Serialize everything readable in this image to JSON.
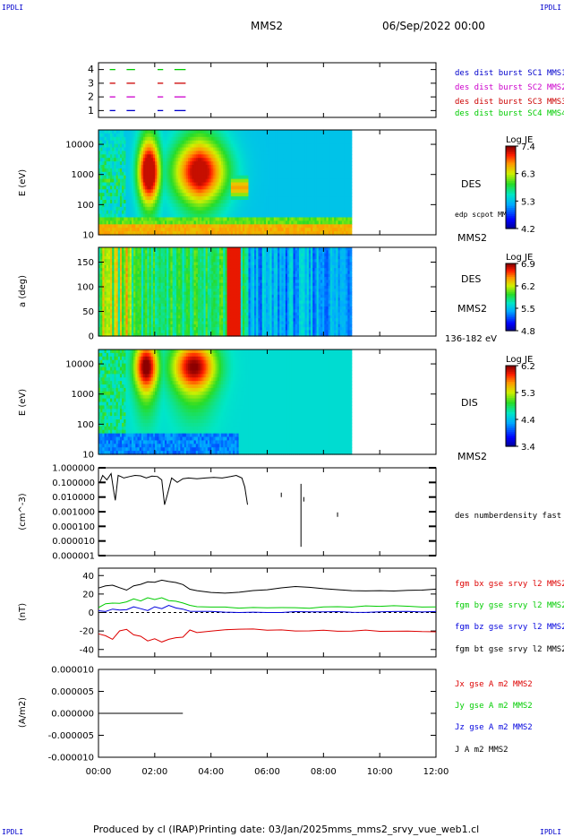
{
  "corner_label": "IPDLI",
  "header": {
    "spacecraft": "MMS2",
    "datetime": "06/Sep/2022 00:00"
  },
  "footer": {
    "produced": "Produced by cl (IRAP)",
    "printing": "Printing date: 03/Jan/2025",
    "filename": "mms_mms2_srvy_vue_web1.cl"
  },
  "time_axis": {
    "ticks": [
      "00:00",
      "02:00",
      "04:00",
      "06:00",
      "08:00",
      "10:00",
      "12:00"
    ],
    "range_hours": [
      0,
      12
    ]
  },
  "colors": {
    "mms1": "#0000cc",
    "mms2": "#cc00cc",
    "mms3": "#cc0000",
    "mms4": "#00cc00",
    "bx": "#dd0000",
    "by": "#00cc00",
    "bz": "#0000dd",
    "bt": "#000000"
  },
  "chart_data": [
    {
      "type": "scatter",
      "panel": "burst-availability",
      "y_ticks": [
        "1",
        "2",
        "3",
        "4"
      ],
      "ylim": [
        0.5,
        4.5
      ],
      "series": [
        {
          "name": "des dist burst SC1 MMS1",
          "level": 1,
          "color": "#0000cc",
          "segments_hours": [
            [
              0.4,
              0.6
            ],
            [
              1.0,
              1.3
            ],
            [
              2.1,
              2.3
            ],
            [
              2.7,
              3.1
            ]
          ]
        },
        {
          "name": "des dist burst SC2 MMS2",
          "level": 2,
          "color": "#cc00cc",
          "segments_hours": [
            [
              0.4,
              0.6
            ],
            [
              1.0,
              1.3
            ],
            [
              2.1,
              2.3
            ],
            [
              2.7,
              3.1
            ]
          ]
        },
        {
          "name": "des dist burst SC3 MMS3",
          "level": 3,
          "color": "#cc0000",
          "segments_hours": [
            [
              0.4,
              0.6
            ],
            [
              1.0,
              1.3
            ],
            [
              2.1,
              2.3
            ],
            [
              2.7,
              3.1
            ]
          ]
        },
        {
          "name": "des dist burst SC4 MMS4",
          "level": 4,
          "color": "#00cc00",
          "segments_hours": [
            [
              0.4,
              0.6
            ],
            [
              1.0,
              1.3
            ],
            [
              2.1,
              2.3
            ],
            [
              2.7,
              3.1
            ]
          ]
        }
      ]
    },
    {
      "type": "heatmap",
      "panel": "des-energy",
      "ylabel": "E (eV)",
      "y_scale": "log",
      "y_ticks": [
        "10",
        "100",
        "1000",
        "10000"
      ],
      "ylim": [
        10,
        30000
      ],
      "data_end_hours": 9.0,
      "instrument": "DES",
      "overlay_label": "edp scpot MMS2",
      "spacecraft": "MMS2",
      "colorbar": {
        "title": "Log JE",
        "ticks": [
          "7.4",
          "6.3",
          "5.3",
          "4.2"
        ],
        "range": [
          4.2,
          7.4
        ]
      }
    },
    {
      "type": "heatmap",
      "panel": "des-pitch-angle",
      "ylabel": "a (deg)",
      "y_ticks": [
        "0",
        "50",
        "100",
        "150"
      ],
      "ylim": [
        0,
        180
      ],
      "data_end_hours": 9.0,
      "instrument": "DES",
      "spacecraft": "MMS2",
      "energy_band": "136-182 eV",
      "colorbar": {
        "title": "Log JE",
        "ticks": [
          "6.9",
          "6.2",
          "5.5",
          "4.8"
        ],
        "range": [
          4.8,
          6.9
        ]
      }
    },
    {
      "type": "heatmap",
      "panel": "dis-energy",
      "ylabel": "E (eV)",
      "y_scale": "log",
      "y_ticks": [
        "10",
        "100",
        "1000",
        "10000"
      ],
      "ylim": [
        10,
        30000
      ],
      "data_end_hours": 9.0,
      "instrument": "DIS",
      "spacecraft": "MMS2",
      "colorbar": {
        "title": "Log JE",
        "ticks": [
          "6.2",
          "5.3",
          "4.4",
          "3.4"
        ],
        "range": [
          3.4,
          6.2
        ]
      }
    },
    {
      "type": "line",
      "panel": "density",
      "ylabel": "(cm^-3)",
      "y_scale": "log",
      "y_ticks": [
        "0.000001",
        "0.000010",
        "0.000100",
        "0.001000",
        "0.010000",
        "0.100000",
        "1.000000"
      ],
      "ylim": [
        1e-06,
        1.0
      ],
      "series": [
        {
          "name": "des numberdensity fast M",
          "color": "#000000",
          "x_hours": [
            0.05,
            0.15,
            0.3,
            0.45,
            0.55,
            0.6,
            0.7,
            0.8,
            0.9,
            1.1,
            1.3,
            1.5,
            1.7,
            1.9,
            2.1,
            2.25,
            2.35,
            2.45,
            2.6,
            2.8,
            3.0,
            3.2,
            3.5,
            3.8,
            4.1,
            4.4,
            4.7,
            4.9,
            5.1,
            5.2,
            5.3
          ],
          "y": [
            0.1,
            0.3,
            0.15,
            0.4,
            0.02,
            0.006,
            0.3,
            0.25,
            0.2,
            0.25,
            0.3,
            0.28,
            0.2,
            0.27,
            0.25,
            0.15,
            0.003,
            0.015,
            0.2,
            0.1,
            0.18,
            0.2,
            0.18,
            0.2,
            0.22,
            0.2,
            0.25,
            0.3,
            0.2,
            0.05,
            0.003
          ]
        }
      ]
    },
    {
      "type": "line",
      "panel": "magnetic-field",
      "ylabel": "(nT)",
      "y_ticks": [
        "-40",
        "-20",
        "0",
        "20",
        "40"
      ],
      "ylim": [
        -48,
        48
      ],
      "x_hours": [
        0,
        0.25,
        0.5,
        0.75,
        1,
        1.25,
        1.5,
        1.75,
        2,
        2.25,
        2.5,
        2.75,
        3,
        3.25,
        3.5,
        4,
        4.5,
        5,
        5.5,
        6,
        6.5,
        7,
        7.5,
        8,
        8.5,
        9,
        9.5,
        10,
        10.5,
        11,
        11.5,
        12
      ],
      "series": [
        {
          "name": "fgm bx gse srvy l2 MMS2",
          "color": "#dd0000",
          "values": [
            -22,
            -26,
            -28,
            -20,
            -18,
            -24,
            -26,
            -30,
            -28,
            -32,
            -30,
            -28,
            -26,
            -20,
            -22,
            -20,
            -19,
            -18,
            -18,
            -19,
            -19,
            -20,
            -20,
            -19,
            -20,
            -20,
            -19,
            -20,
            -20,
            -20,
            -21,
            -21
          ]
        },
        {
          "name": "fgm by gse srvy l2 MMS2",
          "color": "#00cc00",
          "values": [
            6,
            9,
            10,
            10,
            12,
            14,
            12,
            16,
            14,
            16,
            14,
            12,
            10,
            8,
            6,
            6,
            6,
            5,
            5,
            5,
            5,
            5,
            5,
            6,
            6,
            6,
            7,
            7,
            7,
            7,
            6,
            6
          ]
        },
        {
          "name": "fgm bz gse srvy l2 MMS2",
          "color": "#0000dd",
          "values": [
            3,
            2,
            4,
            3,
            2,
            6,
            4,
            2,
            6,
            4,
            8,
            4,
            3,
            2,
            1,
            1,
            0,
            0,
            0,
            0,
            0,
            1,
            1,
            1,
            1,
            0,
            0,
            1,
            1,
            1,
            1,
            1
          ]
        },
        {
          "name": "fgm bt gse srvy l2 MMS2",
          "color": "#000000",
          "values": [
            27,
            29,
            30,
            26,
            24,
            28,
            30,
            34,
            32,
            36,
            34,
            32,
            30,
            26,
            24,
            22,
            21,
            22,
            24,
            25,
            27,
            28,
            27,
            26,
            25,
            24,
            23,
            24,
            23,
            24,
            24,
            25
          ]
        }
      ]
    },
    {
      "type": "line",
      "panel": "current-density",
      "ylabel": "(A/m2)",
      "y_ticks": [
        "-0.000010",
        "-0.000005",
        "0.000000",
        "0.000005",
        "0.000010"
      ],
      "ylim": [
        -1e-05,
        1e-05
      ],
      "series": [
        {
          "name": "Jx gse A m2 MMS2",
          "color": "#dd0000"
        },
        {
          "name": "Jy gse A m2 MMS2",
          "color": "#00cc00"
        },
        {
          "name": "Jz gse A m2 MMS2",
          "color": "#0000dd"
        },
        {
          "name": "J A m2 MMS2",
          "color": "#000000",
          "x_hours": [
            0,
            3.0
          ],
          "values": [
            0,
            0
          ]
        }
      ]
    }
  ]
}
